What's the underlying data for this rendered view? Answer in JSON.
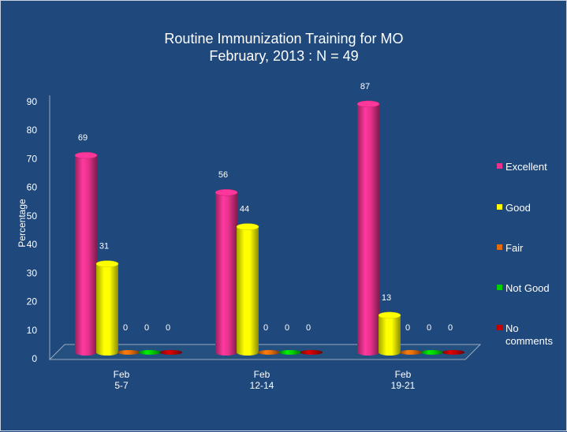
{
  "chart_data": {
    "type": "bar",
    "title": "Routine Immunization Training for MO",
    "subtitle": "February, 2013 : N = 49",
    "ylabel": "Percentage",
    "xlabel": "",
    "ylim": [
      0,
      90
    ],
    "yticks": [
      0,
      10,
      20,
      30,
      40,
      50,
      60,
      70,
      80,
      90
    ],
    "grid": false,
    "legend_position": "right",
    "categories": [
      [
        "Feb",
        "5-7"
      ],
      [
        "Feb",
        "12-14"
      ],
      [
        "Feb",
        "19-21"
      ]
    ],
    "series": [
      {
        "name": "Excellent",
        "values": [
          69,
          56,
          87
        ],
        "color": "#e8328c"
      },
      {
        "name": "Good",
        "values": [
          31,
          44,
          13
        ],
        "color": "#ffff00"
      },
      {
        "name": "Fair",
        "values": [
          0,
          0,
          0
        ],
        "color": "#e46c0a"
      },
      {
        "name": "Not Good",
        "values": [
          0,
          0,
          0
        ],
        "color": "#00d000"
      },
      {
        "name": "No comments",
        "values": [
          0,
          0,
          0
        ],
        "color": "#c00000"
      }
    ],
    "legend_lines": [
      [
        "Excellent"
      ],
      [
        "Good"
      ],
      [
        "Fair"
      ],
      [
        "Not Good"
      ],
      [
        "No",
        "comments"
      ]
    ],
    "data_labels": [
      [
        "69",
        "31",
        "0",
        "0",
        "0"
      ],
      [
        "56",
        "44",
        "0",
        "0",
        "0"
      ],
      [
        "87",
        "13",
        "0",
        "0",
        "0"
      ]
    ]
  }
}
